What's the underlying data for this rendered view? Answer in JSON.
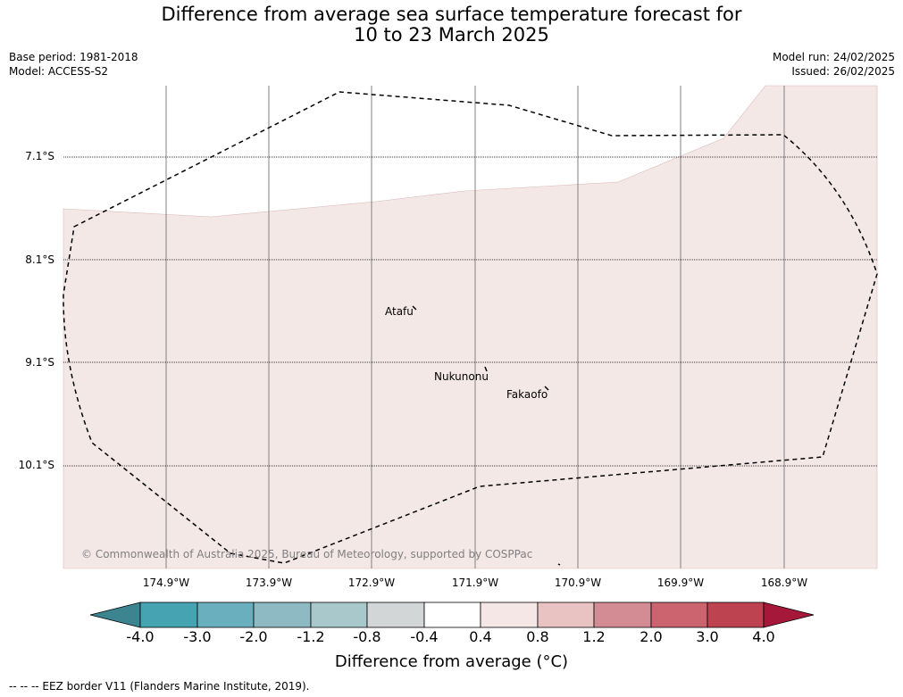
{
  "title_line1": "Difference from average sea surface temperature forecast for",
  "title_line2": "10 to 23 March 2025",
  "base_period": "Base period: 1981-2018",
  "model": "Model: ACCESS-S2",
  "model_run": "Model run: 24/02/2025",
  "issued": "Issued: 26/02/2025",
  "lat_labels": [
    "7.1°S",
    "8.1°S",
    "9.1°S",
    "10.1°S"
  ],
  "lon_labels": [
    "174.9°W",
    "173.9°W",
    "172.9°W",
    "171.9°W",
    "170.9°W",
    "169.9°W",
    "168.9°W"
  ],
  "places": {
    "atafu": "Atafu",
    "nukunonu": "Nukunonu",
    "fakaofo": "Fakaofo"
  },
  "copyright": "© Commonwealth of Australia 2025, Bureau of Meteorology, supported by COSPPac",
  "colorbar": {
    "ticks": [
      "-4.0",
      "-3.0",
      "-2.0",
      "-1.2",
      "-0.8",
      "-0.4",
      "0.4",
      "0.8",
      "1.2",
      "2.0",
      "3.0",
      "4.0"
    ],
    "colors": [
      "#3c8490",
      "#46a3b2",
      "#6aafbd",
      "#8dbac3",
      "#a9c8cb",
      "#d2d6d6",
      "#ffffff",
      "#f5e7e6",
      "#e8c3c1",
      "#d48c94",
      "#cc6470",
      "#be4350",
      "#a6183a"
    ],
    "label": "Difference from average (°C)"
  },
  "map_fill_color": "#f4e8e7",
  "footnote": "--  --  -- EEZ border V11 (Flanders Marine Institute, 2019)."
}
